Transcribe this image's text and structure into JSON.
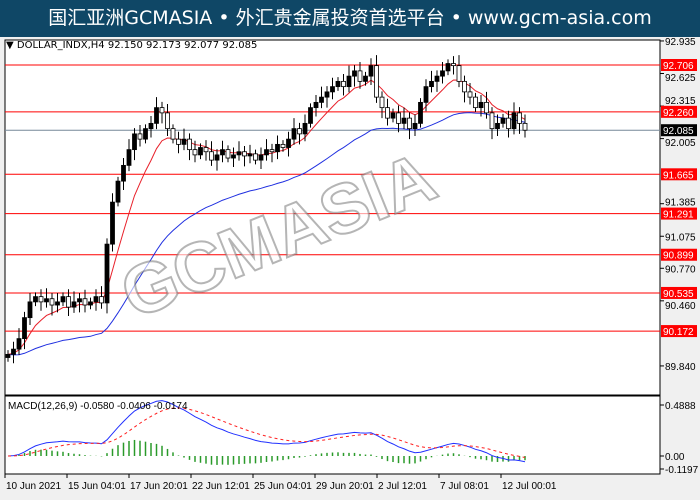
{
  "banner": {
    "text": "国汇亚洲GCMASIA • 外汇贵金属投资首选平台 • www.gcm-asia.com"
  },
  "chart_data": {
    "type": "candlestick",
    "symbol_label": "DOLLAR_INDX,H4  92.150 92.173 92.077 92.085",
    "ylim": [
      89.84,
      92.935
    ],
    "y_ticks": [
      "92.935",
      "92.625",
      "92.315",
      "92.005",
      "91.385",
      "91.075",
      "90.770",
      "90.460",
      "89.840"
    ],
    "closes": [
      89.95,
      90.0,
      90.1,
      90.3,
      90.45,
      90.5,
      90.45,
      90.48,
      90.42,
      90.45,
      90.5,
      90.4,
      90.45,
      90.48,
      90.42,
      90.45,
      90.5,
      90.44,
      91.0,
      91.4,
      91.6,
      91.75,
      91.9,
      92.05,
      92.0,
      92.1,
      92.15,
      92.3,
      92.25,
      92.1,
      92.0,
      91.95,
      92.0,
      91.9,
      91.85,
      91.92,
      91.88,
      91.8,
      91.85,
      91.9,
      91.82,
      91.85,
      91.88,
      91.84,
      91.86,
      91.8,
      91.85,
      91.9,
      91.88,
      91.95,
      91.92,
      92.0,
      92.1,
      92.05,
      92.15,
      92.3,
      92.35,
      92.4,
      92.45,
      92.5,
      92.55,
      92.5,
      92.6,
      92.65,
      92.55,
      92.6,
      92.7,
      92.4,
      92.3,
      92.2,
      92.25,
      92.15,
      92.2,
      92.1,
      92.15,
      92.35,
      92.5,
      92.55,
      92.6,
      92.65,
      92.72,
      92.7,
      92.55,
      92.45,
      92.4,
      92.3,
      92.35,
      92.25,
      92.1,
      92.15,
      92.2,
      92.1,
      92.25,
      92.15,
      92.085
    ],
    "levels": [
      {
        "value": 92.706,
        "label": "92.706"
      },
      {
        "value": 92.26,
        "label": "92.260"
      },
      {
        "value": 91.665,
        "label": "91.665"
      },
      {
        "value": 91.291,
        "label": "91.291"
      },
      {
        "value": 90.899,
        "label": "90.899"
      },
      {
        "value": 90.535,
        "label": "90.535"
      },
      {
        "value": 90.172,
        "label": "90.172"
      }
    ],
    "current": {
      "value": 92.085,
      "label": "92.085"
    },
    "macd": {
      "label": "MACD(12,26,9) -0.0580 -0.0406 -0.0174",
      "ylim": [
        -0.1197,
        0.4888
      ],
      "y_ticks": [
        "0.4888",
        "0.00",
        "-0.1197"
      ]
    },
    "x_ticks": [
      "10 Jun 2021",
      "15 Jun 04:01",
      "17 Jun 20:01",
      "22 Jun 12:01",
      "25 Jun 04:01",
      "29 Jun 20:01",
      "2 Jul 12:01",
      "7 Jul 08:01",
      "12 Jul 00:01"
    ],
    "colors": {
      "up": "#000000",
      "down": "#ffffff",
      "fast_ma": "#e8202a",
      "slow_ma": "#2030e0",
      "level": "#ff0000",
      "hist": "#2a9a2a",
      "signal": "#ff2020",
      "macd_line": "#2030ff"
    }
  },
  "watermark": "GCMASIA"
}
